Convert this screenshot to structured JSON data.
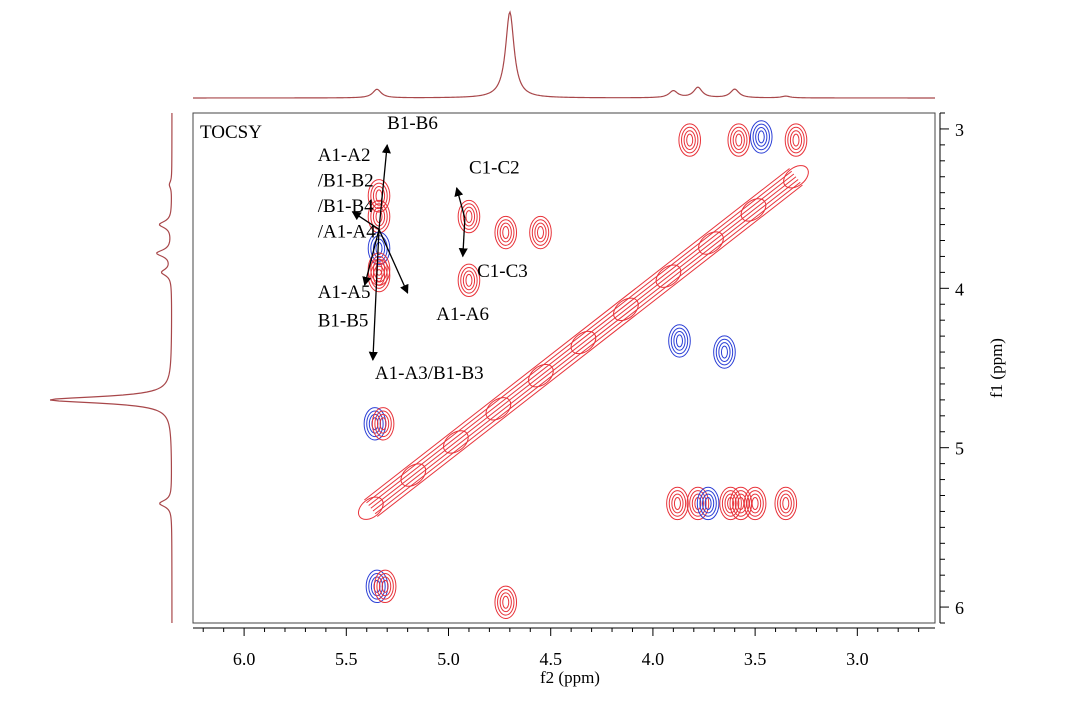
{
  "colors": {
    "positive": "#e8333a",
    "negative": "#2b3fd6",
    "projection": "#a8474a",
    "frame": "#000000",
    "arrow": "#000000"
  },
  "chart_data": {
    "type": "contour2d",
    "title": "TOCSY",
    "xlabel": "f2 (ppm)",
    "ylabel": "f1 (ppm)",
    "xlim": [
      6.25,
      2.62
    ],
    "ylim": [
      2.9,
      6.1
    ],
    "x_ticks": [
      {
        "v": 6.0,
        "label": "6.0"
      },
      {
        "v": 5.5,
        "label": "5.5"
      },
      {
        "v": 5.0,
        "label": "5.0"
      },
      {
        "v": 4.5,
        "label": "4.5"
      },
      {
        "v": 4.0,
        "label": "4.0"
      },
      {
        "v": 3.5,
        "label": "3.5"
      },
      {
        "v": 3.0,
        "label": "3.0"
      }
    ],
    "y_ticks": [
      {
        "v": 3,
        "label": "3"
      },
      {
        "v": 4,
        "label": "4"
      },
      {
        "v": 5,
        "label": "5"
      },
      {
        "v": 6,
        "label": "6"
      }
    ],
    "projection_peaks": [
      {
        "ppm": 5.35,
        "height": 0.1
      },
      {
        "ppm": 4.7,
        "height": 1.0
      },
      {
        "ppm": 3.9,
        "height": 0.08
      },
      {
        "ppm": 3.78,
        "height": 0.12
      },
      {
        "ppm": 3.6,
        "height": 0.1
      },
      {
        "ppm": 3.35,
        "height": 0.02
      }
    ],
    "diagonal": {
      "from": [
        5.38,
        5.38
      ],
      "to": [
        3.3,
        3.3
      ]
    },
    "cross_peaks": [
      {
        "x": 5.34,
        "y": 3.42,
        "sign": "positive"
      },
      {
        "x": 5.34,
        "y": 3.55,
        "sign": "positive"
      },
      {
        "x": 5.34,
        "y": 3.75,
        "sign": "negative"
      },
      {
        "x": 5.34,
        "y": 3.88,
        "sign": "positive"
      },
      {
        "x": 5.34,
        "y": 3.92,
        "sign": "positive"
      },
      {
        "x": 5.36,
        "y": 4.85,
        "sign": "negative"
      },
      {
        "x": 5.32,
        "y": 4.85,
        "sign": "positive"
      },
      {
        "x": 5.35,
        "y": 5.87,
        "sign": "negative"
      },
      {
        "x": 5.31,
        "y": 5.87,
        "sign": "positive"
      },
      {
        "x": 4.9,
        "y": 3.55,
        "sign": "positive"
      },
      {
        "x": 4.9,
        "y": 3.95,
        "sign": "positive"
      },
      {
        "x": 4.72,
        "y": 3.65,
        "sign": "positive"
      },
      {
        "x": 4.72,
        "y": 5.97,
        "sign": "positive"
      },
      {
        "x": 4.55,
        "y": 3.65,
        "sign": "positive"
      },
      {
        "x": 3.88,
        "y": 5.35,
        "sign": "positive"
      },
      {
        "x": 3.78,
        "y": 5.35,
        "sign": "positive"
      },
      {
        "x": 3.62,
        "y": 5.35,
        "sign": "positive"
      },
      {
        "x": 3.57,
        "y": 5.35,
        "sign": "positive"
      },
      {
        "x": 3.5,
        "y": 5.35,
        "sign": "positive"
      },
      {
        "x": 3.35,
        "y": 5.35,
        "sign": "positive"
      },
      {
        "x": 3.73,
        "y": 5.35,
        "sign": "negative"
      },
      {
        "x": 3.87,
        "y": 4.33,
        "sign": "negative"
      },
      {
        "x": 3.65,
        "y": 4.4,
        "sign": "negative"
      },
      {
        "x": 3.47,
        "y": 3.05,
        "sign": "negative"
      },
      {
        "x": 3.82,
        "y": 3.07,
        "sign": "positive"
      },
      {
        "x": 3.58,
        "y": 3.07,
        "sign": "positive"
      },
      {
        "x": 3.3,
        "y": 3.07,
        "sign": "positive"
      }
    ],
    "annotations": [
      {
        "text": "B1-B6",
        "x": 5.3,
        "y": 3.0
      },
      {
        "text": "A1-A2",
        "x": 5.64,
        "y": 3.2
      },
      {
        "text": "/B1-B2",
        "x": 5.64,
        "y": 3.36
      },
      {
        "text": "/B1-B4",
        "x": 5.64,
        "y": 3.52
      },
      {
        "text": "/A1-A4",
        "x": 5.64,
        "y": 3.68
      },
      {
        "text": "C1-C2",
        "x": 4.9,
        "y": 3.28
      },
      {
        "text": "C1-C3",
        "x": 4.86,
        "y": 3.93
      },
      {
        "text": "A1-A5",
        "x": 5.64,
        "y": 4.06
      },
      {
        "text": "B1-B5",
        "x": 5.64,
        "y": 4.24
      },
      {
        "text": "A1-A6",
        "x": 5.06,
        "y": 4.2
      },
      {
        "text": "A1-A3/B1-B3",
        "x": 5.36,
        "y": 4.57
      }
    ]
  }
}
